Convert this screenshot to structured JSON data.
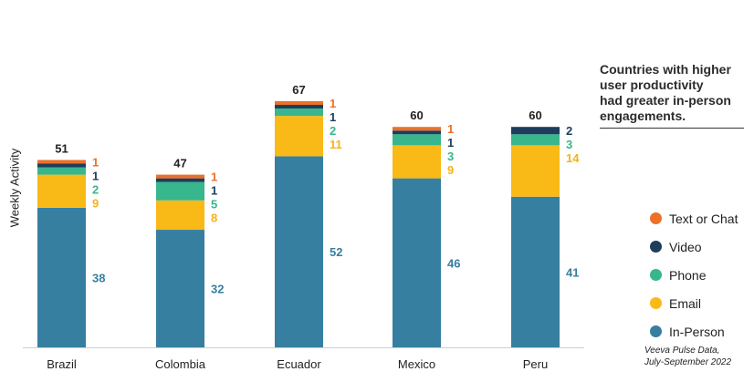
{
  "chart_data": {
    "type": "bar",
    "stacked": true,
    "ylabel": "Weekly Activity",
    "categories": [
      "Brazil",
      "Colombia",
      "Ecuador",
      "Mexico",
      "Peru"
    ],
    "totals": [
      "51",
      "47",
      "67",
      "60",
      "60"
    ],
    "series": [
      {
        "name": "In-Person",
        "color": "#367fa0",
        "values": [
          38,
          32,
          52,
          46,
          41
        ],
        "labels": [
          "38",
          "32",
          "52",
          "46",
          "41"
        ]
      },
      {
        "name": "Email",
        "color": "#f9b916",
        "values": [
          9,
          8,
          11,
          9,
          14
        ],
        "labels": [
          "9",
          "8",
          "11",
          "9",
          "14"
        ]
      },
      {
        "name": "Phone",
        "color": "#38b68d",
        "values": [
          2,
          5,
          2,
          3,
          3
        ],
        "labels": [
          "2",
          "5",
          "2",
          "3",
          "3"
        ]
      },
      {
        "name": "Video",
        "color": "#1e3d5c",
        "values": [
          1,
          1,
          1,
          1,
          2
        ],
        "labels": [
          "1",
          "1",
          "1",
          "1",
          "2"
        ]
      },
      {
        "name": "Text or Chat",
        "color": "#ec7028",
        "values": [
          1,
          1,
          1,
          1,
          0
        ],
        "labels": [
          "1",
          "1",
          "1",
          "1",
          ""
        ]
      }
    ]
  },
  "annotation": "Countries with higher\nuser productivity\nhad greater in-person\nengagements.",
  "legend": [
    {
      "label": "Text or Chat",
      "color": "#ec7028"
    },
    {
      "label": "Video",
      "color": "#1e3d5c"
    },
    {
      "label": "Phone",
      "color": "#38b68d"
    },
    {
      "label": "Email",
      "color": "#f9b916"
    },
    {
      "label": "In-Person",
      "color": "#367fa0"
    }
  ],
  "source": "Veeva Pulse Data,\nJuly-September 2022"
}
